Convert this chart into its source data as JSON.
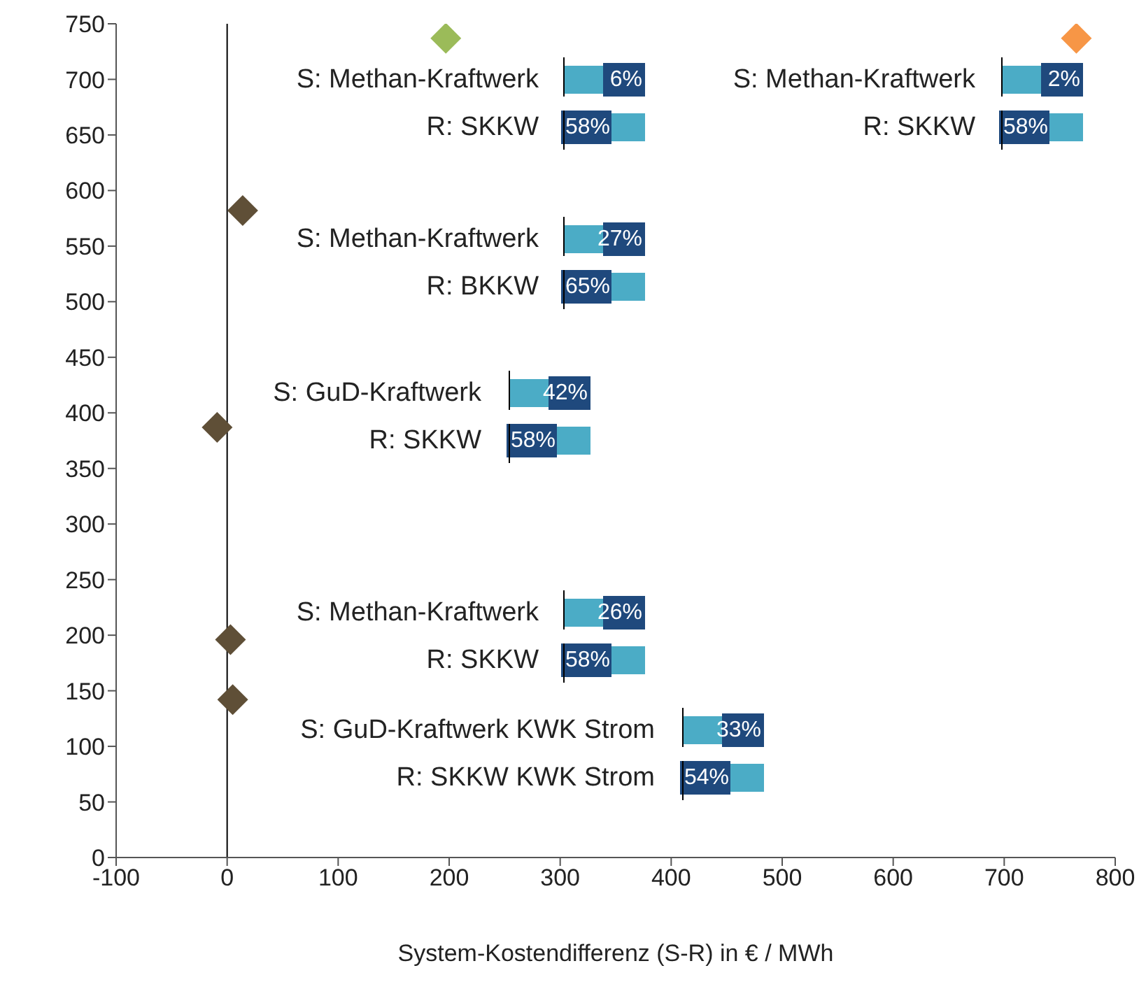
{
  "chart_data": {
    "type": "scatter",
    "xlabel": "System-Kostendifferenz (S-R) in € / MWh",
    "marker": "diamond",
    "x": [
      197,
      765,
      14,
      -9,
      3,
      5
    ],
    "values": [
      737,
      737,
      582,
      387,
      196,
      142
    ],
    "colors": [
      "#9bbb59",
      "#f79646",
      "#5f4f37",
      "#5f4f37",
      "#5f4f37",
      "#5f4f37"
    ],
    "xlim": [
      -100,
      800
    ],
    "xticks": [
      -100,
      0,
      100,
      200,
      300,
      400,
      500,
      600,
      700,
      800
    ],
    "ylim": [
      0,
      750
    ],
    "yticks": [
      0,
      50,
      100,
      150,
      200,
      250,
      300,
      350,
      400,
      450,
      500,
      550,
      600,
      650,
      700,
      750
    ],
    "ref_lines": [
      {
        "axis": "x",
        "value": 0,
        "color": "#000000"
      }
    ],
    "annotations": [
      "S: Methan-Kraftwerk",
      "6%",
      "R: SKKW",
      "58%",
      "S: Methan-Kraftwerk",
      "2%",
      "R: SKKW",
      "58%",
      "S: Methan-Kraftwerk",
      "27%",
      "R: BKKW",
      "65%",
      "S: GuD-Kraftwerk",
      "42%",
      "R: SKKW",
      "58%",
      "S: Methan-Kraftwerk",
      "26%",
      "R: SKKW",
      "58%",
      "S: GuD-Kraftwerk KWK Strom",
      "33%",
      "R: SKKW KWK Strom",
      "54%"
    ]
  }
}
